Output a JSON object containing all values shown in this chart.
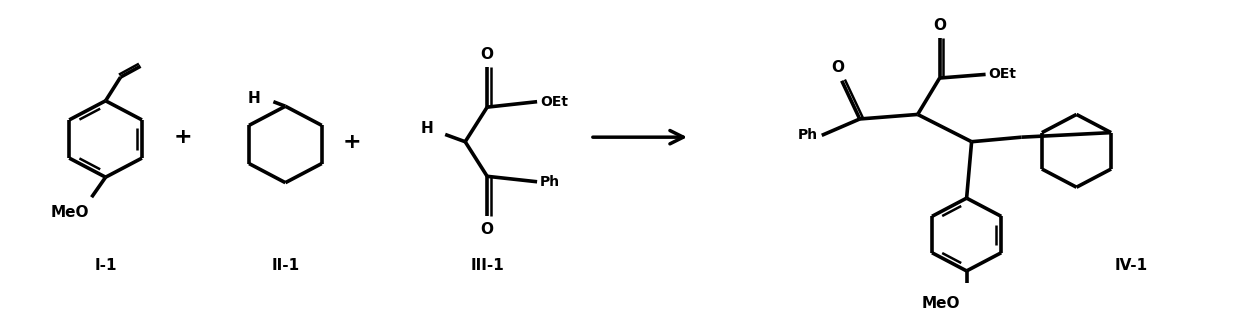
{
  "bg": "#ffffff",
  "lc": "#000000",
  "lw": 1.8,
  "blw": 2.6,
  "fw": 12.4,
  "fh": 3.1,
  "fs": 10,
  "fsl": 11,
  "label_I1": "I-1",
  "label_II1": "II-1",
  "label_III1": "III-1",
  "label_IV1": "IV-1",
  "MeO": "MeO",
  "OEt": "OEt",
  "Ph": "Ph",
  "H": "H",
  "O": "O",
  "plus": "+"
}
